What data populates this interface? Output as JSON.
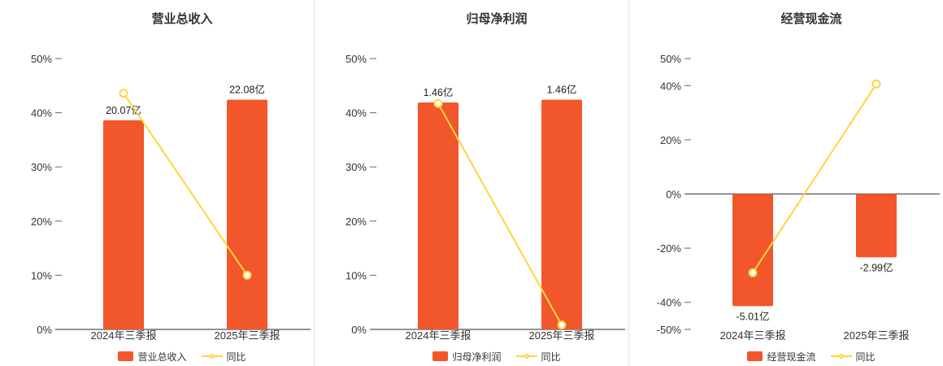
{
  "colors": {
    "bar": "#f2562b",
    "line": "#ffd53e",
    "axis": "#555555",
    "divider": "#e4e4e4",
    "text": "#333333"
  },
  "chart_data": [
    {
      "type": "bar+line",
      "title": "营业总收入",
      "categories": [
        "2024年三季报",
        "2025年三季报"
      ],
      "ylim": [
        0,
        50
      ],
      "yticks": [
        50,
        40,
        30,
        20,
        10,
        0
      ],
      "y_unit": "%",
      "grid": false,
      "legend_position": "bottom",
      "bar_series": {
        "name": "营业总收入",
        "labels": [
          "20.07亿",
          "22.08亿"
        ],
        "plotted_pct": [
          38.6,
          42.4
        ]
      },
      "line_series": {
        "name": "同比",
        "values_pct": [
          43.6,
          10.0
        ]
      }
    },
    {
      "type": "bar+line",
      "title": "归母净利润",
      "categories": [
        "2024年三季报",
        "2025年三季报"
      ],
      "ylim": [
        0,
        50
      ],
      "yticks": [
        50,
        40,
        30,
        20,
        10,
        0
      ],
      "y_unit": "%",
      "grid": false,
      "legend_position": "bottom",
      "bar_series": {
        "name": "归母净利润",
        "labels": [
          "1.46亿",
          "1.46亿"
        ],
        "plotted_pct": [
          41.9,
          42.4
        ]
      },
      "line_series": {
        "name": "同比",
        "values_pct": [
          41.7,
          0.8
        ]
      }
    },
    {
      "type": "bar+line",
      "title": "经营现金流",
      "categories": [
        "2024年三季报",
        "2025年三季报"
      ],
      "ylim": [
        -50,
        50
      ],
      "yticks": [
        50,
        40,
        20,
        0,
        -20,
        -40,
        -50
      ],
      "y_unit": "%",
      "grid": false,
      "legend_position": "bottom",
      "bar_series": {
        "name": "经营现金流",
        "labels": [
          "-5.01亿",
          "-2.99亿"
        ],
        "plotted_pct": [
          -41.4,
          -23.4
        ]
      },
      "line_series": {
        "name": "同比",
        "values_pct": [
          -29.1,
          40.6
        ]
      }
    }
  ]
}
